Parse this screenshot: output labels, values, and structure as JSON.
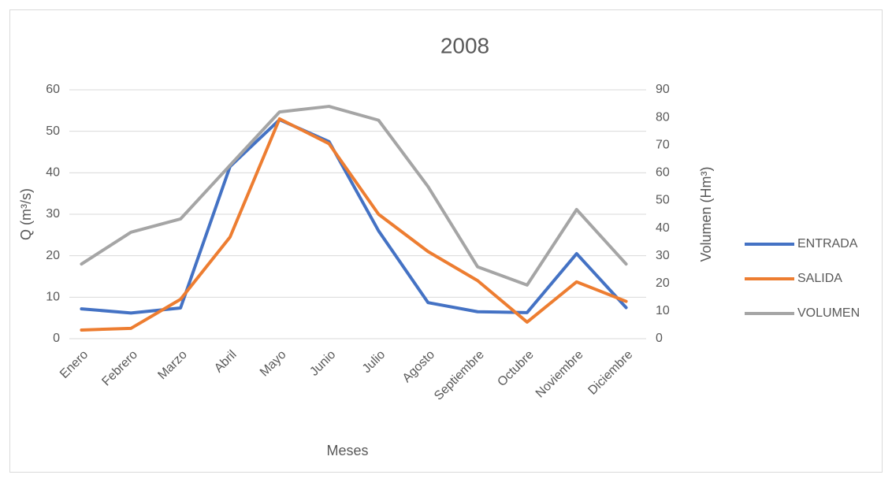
{
  "chart_data": {
    "type": "line",
    "title": "2008",
    "x_label": "Meses",
    "y_label": "Q (m³/s)",
    "y2_label": "Volumen (Hm³)",
    "categories": [
      "Enero",
      "Febrero",
      "Marzo",
      "Abril",
      "Mayo",
      "Junio",
      "Julio",
      "Agosto",
      "Septiembre",
      "Octubre",
      "Noviembre",
      "Diciembre"
    ],
    "series": [
      {
        "name": "ENTRADA",
        "color": "#4472c4",
        "values": [
          7.2,
          6.2,
          7.4,
          41.5,
          52.8,
          47.5,
          26,
          8.7,
          6.5,
          6.3,
          20.5,
          7.5
        ]
      },
      {
        "name": "SALIDA",
        "color": "#ed7d31",
        "values": [
          2.1,
          2.5,
          9.5,
          24.5,
          53,
          47,
          30,
          21,
          14,
          4,
          13.7,
          9
        ]
      },
      {
        "name": "VOLUMEN",
        "color": "#a5a5a5",
        "axis": "y2",
        "values": [
          27,
          38.5,
          43.3,
          62.7,
          82,
          84,
          79,
          55,
          26,
          19.4,
          46.7,
          27
        ]
      }
    ],
    "ylim": [
      0,
      60
    ],
    "yticks": [
      0,
      10,
      20,
      30,
      40,
      50,
      60
    ],
    "y2lim": [
      0,
      90
    ],
    "y2ticks": [
      0,
      10,
      20,
      30,
      40,
      50,
      60,
      70,
      80,
      90
    ],
    "grid": true,
    "legend": "right"
  }
}
